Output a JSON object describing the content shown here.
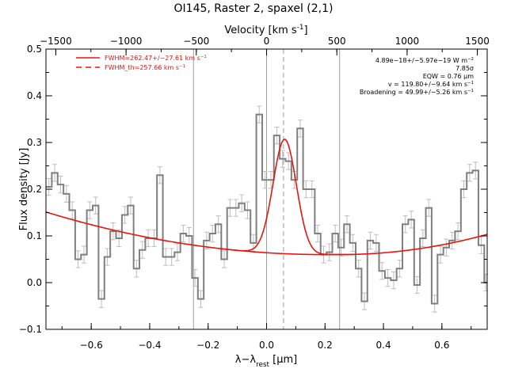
{
  "chart_data": {
    "type": "line",
    "title": "OI145, Raster 2, spaxel (2,1)",
    "xlabel_main": "λ−λ",
    "xlabel_sub": "rest",
    "xlabel_unit": "[μm]",
    "ylabel": "Flux density [Jy]",
    "top_axis_label": "Velocity [km s",
    "top_axis_label_sup": "-1",
    "top_axis_label_end": "]",
    "xlim": [
      -0.755,
      0.755
    ],
    "ylim": [
      -0.1,
      0.5
    ],
    "vlim": [
      -1570,
      1570
    ],
    "xticks": [
      -0.6,
      -0.4,
      -0.2,
      0.0,
      0.2,
      0.4,
      0.6
    ],
    "xtick_labels": [
      "−0.6",
      "−0.4",
      "−0.2",
      "0.0",
      "0.2",
      "0.4",
      "0.6"
    ],
    "yticks": [
      -0.1,
      0.0,
      0.1,
      0.2,
      0.3,
      0.4,
      0.5
    ],
    "ytick_labels": [
      "−0.1",
      "0.0",
      "0.1",
      "0.2",
      "0.3",
      "0.4",
      "0.5"
    ],
    "vticks": [
      -1500,
      -1000,
      -500,
      0,
      500,
      1000,
      1500
    ],
    "vtick_labels": [
      "−1500",
      "−1000",
      "−500",
      "0",
      "500",
      "1000",
      "1500"
    ],
    "legend": [
      {
        "text": "FWHM=262.47+/−27.61 km s",
        "sup": "−1",
        "style": "solid"
      },
      {
        "text": "FWHM_th=257.66 km s",
        "sup": "−1",
        "style": "dashed"
      }
    ],
    "annotations": [
      {
        "text": "4.89e−18+/−5.97e−19 W m",
        "sup": "−2"
      },
      {
        "text": "7.85σ",
        "sup": ""
      },
      {
        "text": "EQW = 0.76 μm",
        "sup": ""
      },
      {
        "text": "v = 119.80+/−9.64 km s",
        "sup": "−1"
      },
      {
        "text": "Broadening = 49.99+/−5.26 km s",
        "sup": "−1"
      }
    ],
    "vlines_solid": [
      -0.25,
      0.0,
      0.25
    ],
    "vline_dashed": 0.058,
    "spectrum": {
      "name": "data",
      "bin_edges": [
        -0.755,
        -0.735,
        -0.715,
        -0.695,
        -0.675,
        -0.655,
        -0.635,
        -0.615,
        -0.595,
        -0.575,
        -0.555,
        -0.535,
        -0.515,
        -0.495,
        -0.475,
        -0.455,
        -0.435,
        -0.415,
        -0.395,
        -0.375,
        -0.355,
        -0.335,
        -0.315,
        -0.295,
        -0.275,
        -0.255,
        -0.235,
        -0.215,
        -0.195,
        -0.175,
        -0.155,
        -0.135,
        -0.115,
        -0.095,
        -0.075,
        -0.055,
        -0.035,
        -0.015,
        0.005,
        0.025,
        0.045,
        0.065,
        0.085,
        0.105,
        0.125,
        0.145,
        0.165,
        0.185,
        0.205,
        0.225,
        0.245,
        0.265,
        0.285,
        0.305,
        0.325,
        0.345,
        0.365,
        0.385,
        0.405,
        0.425,
        0.445,
        0.465,
        0.485,
        0.505,
        0.525,
        0.545,
        0.565,
        0.585,
        0.605,
        0.625,
        0.645,
        0.665,
        0.685,
        0.705,
        0.725,
        0.745,
        0.755
      ],
      "flux": [
        0.205,
        0.235,
        0.21,
        0.19,
        0.155,
        0.05,
        0.06,
        0.155,
        0.165,
        -0.035,
        0.055,
        0.11,
        0.095,
        0.145,
        0.165,
        0.03,
        0.07,
        0.095,
        0.095,
        0.23,
        0.055,
        0.055,
        0.065,
        0.105,
        0.1,
        0.01,
        -0.035,
        0.09,
        0.105,
        0.125,
        0.05,
        0.16,
        0.16,
        0.17,
        0.155,
        0.085,
        0.36,
        0.22,
        0.22,
        0.315,
        0.265,
        0.26,
        0.22,
        0.33,
        0.2,
        0.2,
        0.105,
        0.06,
        0.065,
        0.105,
        0.075,
        0.125,
        0.085,
        0.03,
        -0.04,
        0.09,
        0.085,
        0.025,
        0.01,
        0.005,
        0.03,
        0.125,
        0.135,
        -0.005,
        0.095,
        0.16,
        -0.045,
        0.06,
        0.075,
        0.09,
        0.11,
        0.2,
        0.235,
        0.24,
        0.08,
        0.0
      ],
      "error": 0.018
    },
    "fit": {
      "name": "fit",
      "baseline_left": {
        "a": 0.06,
        "c": 0.1,
        "x0": 0.2
      },
      "baseline_right": {
        "a": 0.06,
        "c": 0.17,
        "x0": 0.25
      },
      "gauss_center": 0.062,
      "gauss_amp": 0.245,
      "gauss_sigma": 0.04
    },
    "colors": {
      "spectrum": "#7f7f7f",
      "errorbar": "#bdbdbd",
      "fit": "#e8150f",
      "vline": "#9e9e9e"
    }
  }
}
